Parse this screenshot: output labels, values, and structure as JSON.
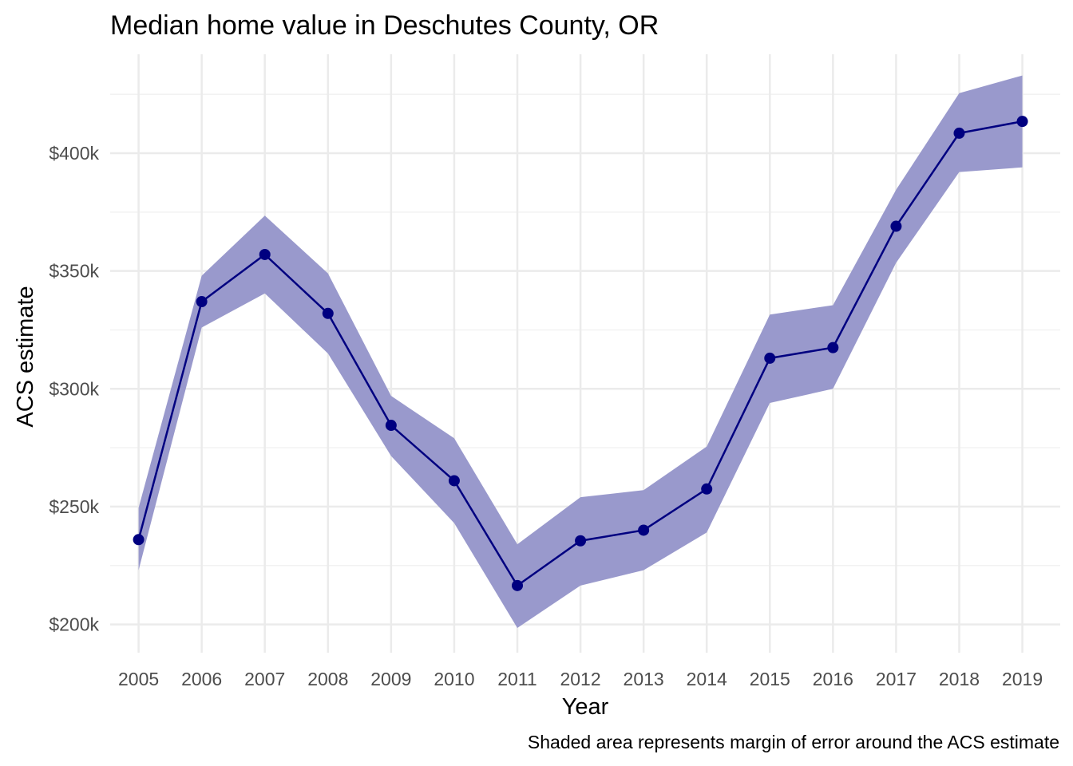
{
  "chart_data": {
    "type": "line",
    "title": "Median home value in Deschutes County, OR",
    "xlabel": "Year",
    "ylabel": "ACS estimate",
    "caption": "Shaded area represents margin of error around the ACS estimate",
    "x": [
      2005,
      2006,
      2007,
      2008,
      2009,
      2010,
      2011,
      2012,
      2013,
      2014,
      2015,
      2016,
      2017,
      2018,
      2019
    ],
    "x_tick_labels": [
      "2005",
      "2006",
      "2007",
      "2008",
      "2009",
      "2010",
      "2011",
      "2012",
      "2013",
      "2014",
      "2015",
      "2016",
      "2017",
      "2018",
      "2019"
    ],
    "y_tick_values": [
      200000,
      250000,
      300000,
      350000,
      400000
    ],
    "y_tick_labels": [
      "$200k",
      "$250k",
      "$300k",
      "$350k",
      "$400k"
    ],
    "ylim": [
      188000,
      442000
    ],
    "xlim": [
      2004.55,
      2019.6
    ],
    "grid": true,
    "series": [
      {
        "values": [
          236000,
          337000,
          357000,
          332000,
          284500,
          261000,
          216500,
          235500,
          240000,
          257500,
          313000,
          317500,
          369000,
          408500,
          413500
        ],
        "lower": [
          223000,
          326000,
          340500,
          315000,
          271500,
          243000,
          198500,
          216500,
          223000,
          239000,
          294000,
          300000,
          353500,
          392000,
          394000
        ],
        "upper": [
          249500,
          348000,
          373500,
          349000,
          297000,
          279000,
          234000,
          254000,
          257000,
          275500,
          331500,
          335500,
          384500,
          425500,
          433000
        ]
      }
    ],
    "colors": {
      "line": "#000080",
      "band": "#9999cc",
      "grid_major": "#ebebeb",
      "grid_minor": "#f2f2f2"
    }
  }
}
